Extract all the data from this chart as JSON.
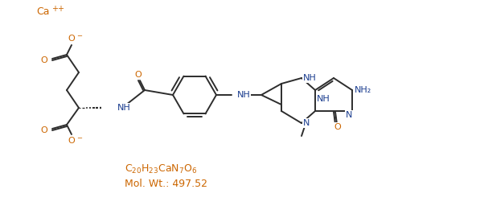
{
  "line_color": "#2d2d2d",
  "atom_color": "#cc6600",
  "n_color": "#1a3c8f",
  "background_color": "#ffffff",
  "fig_width": 5.97,
  "fig_height": 2.61,
  "dpi": 100,
  "formula": "C$_{20}$H$_{23}$CaN$_7$O$_6$",
  "molwt": "Mol. Wt.: 497.52",
  "ca_label": "Ca",
  "ca_super": "++"
}
